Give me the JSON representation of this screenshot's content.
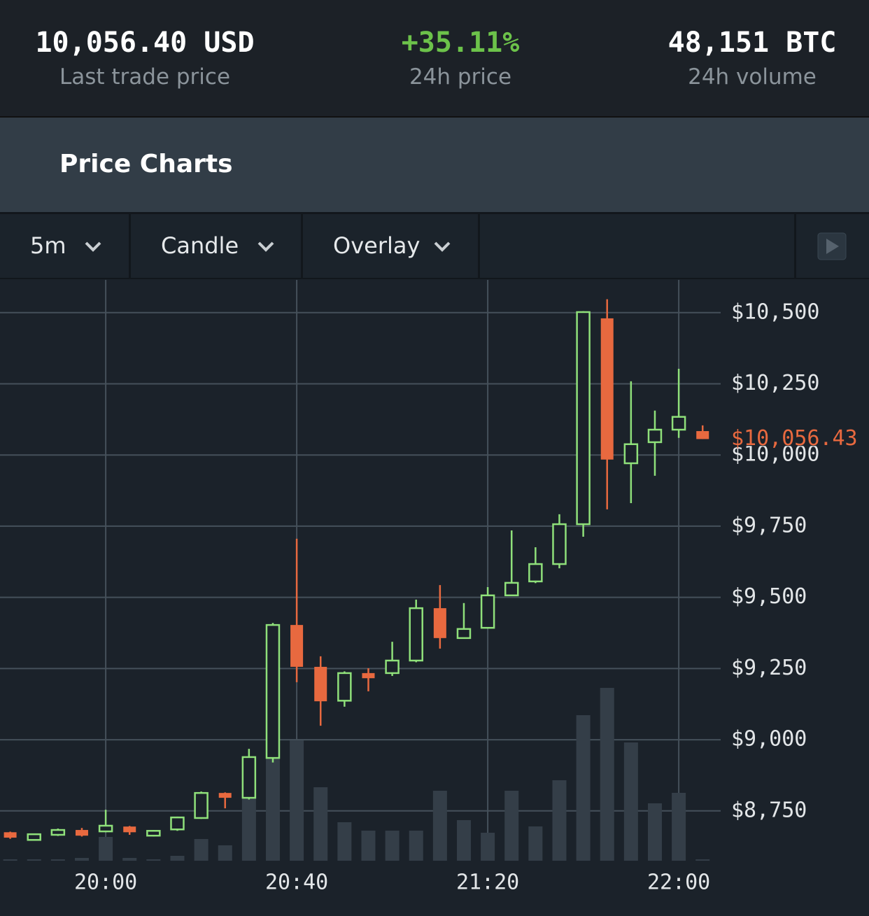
{
  "header": {
    "stats": [
      {
        "value": "10,056.40 USD",
        "label": "Last trade price"
      },
      {
        "value": "+35.11%",
        "label": "24h price"
      },
      {
        "value": "48,151 BTC",
        "label": "24h volume"
      }
    ]
  },
  "section_title": "Price Charts",
  "toolbar": {
    "buttons": [
      "5m",
      "Candle",
      "Overlay"
    ]
  },
  "chart_data": {
    "type": "candlestick",
    "x": [
      "19:40",
      "19:45",
      "19:50",
      "19:55",
      "20:00",
      "20:05",
      "20:10",
      "20:15",
      "20:20",
      "20:25",
      "20:30",
      "20:35",
      "20:40",
      "20:45",
      "20:50",
      "20:55",
      "21:00",
      "21:05",
      "21:10",
      "21:15",
      "21:20",
      "21:25",
      "21:30",
      "21:35",
      "21:40",
      "21:45",
      "21:50",
      "21:55",
      "22:00",
      "22:05"
    ],
    "open": [
      8675,
      8648,
      8666,
      8683,
      8678,
      8695,
      8663,
      8685,
      8725,
      8813,
      8796,
      8936,
      9403,
      9256,
      9137,
      9234,
      9234,
      9278,
      9462,
      9357,
      9393,
      9507,
      9556,
      9617,
      9757,
      10480,
      9971,
      10045,
      10089,
      10084
    ],
    "high": [
      8677,
      8668,
      8688,
      8690,
      8754,
      8697,
      8683,
      8730,
      8818,
      8815,
      8968,
      9410,
      9706,
      9293,
      9240,
      9251,
      9344,
      9492,
      9543,
      9480,
      9536,
      9735,
      9676,
      9792,
      10505,
      10547,
      10259,
      10156,
      10303,
      10104
    ],
    "low": [
      8652,
      8648,
      8662,
      8660,
      8675,
      8666,
      8660,
      8680,
      8722,
      8759,
      8790,
      8920,
      9202,
      9049,
      9116,
      9170,
      9224,
      9272,
      9320,
      9355,
      9390,
      9505,
      9550,
      9602,
      9713,
      9809,
      9831,
      9927,
      10060,
      10056
    ],
    "close": [
      8656,
      8668,
      8683,
      8663,
      8698,
      8675,
      8680,
      8727,
      8813,
      8796,
      8939,
      9403,
      9256,
      9135,
      9234,
      9216,
      9278,
      9462,
      9357,
      9389,
      9507,
      9551,
      9617,
      9757,
      10502,
      9984,
      10038,
      10089,
      10134,
      10056
    ],
    "volume": [
      2,
      2,
      2,
      4,
      34,
      4,
      2,
      7,
      31,
      22,
      100,
      160,
      172,
      105,
      55,
      43,
      43,
      43,
      100,
      58,
      40,
      100,
      49,
      115,
      208,
      247,
      169,
      82,
      97,
      2
    ],
    "ylim": [
      8575,
      10615
    ],
    "y2lim": [
      0,
      830
    ],
    "yticks": [
      {
        "value": 8750,
        "label": "$8,750"
      },
      {
        "value": 9000,
        "label": "$9,000"
      },
      {
        "value": 9250,
        "label": "$9,250"
      },
      {
        "value": 9500,
        "label": "$9,500"
      },
      {
        "value": 9750,
        "label": "$9,750"
      },
      {
        "value": 10000,
        "label": "$10,000"
      },
      {
        "value": 10250,
        "label": "$10,250"
      },
      {
        "value": 10500,
        "label": "$10,500"
      }
    ],
    "xticks": [
      "20:00",
      "20:40",
      "21:20",
      "22:00"
    ],
    "last_price": {
      "value": 10056.43,
      "label": "$10,056.43"
    },
    "up_color": "#8fe07a",
    "down_color": "#e8693f",
    "volume_color": "#343e48",
    "grid": true
  }
}
